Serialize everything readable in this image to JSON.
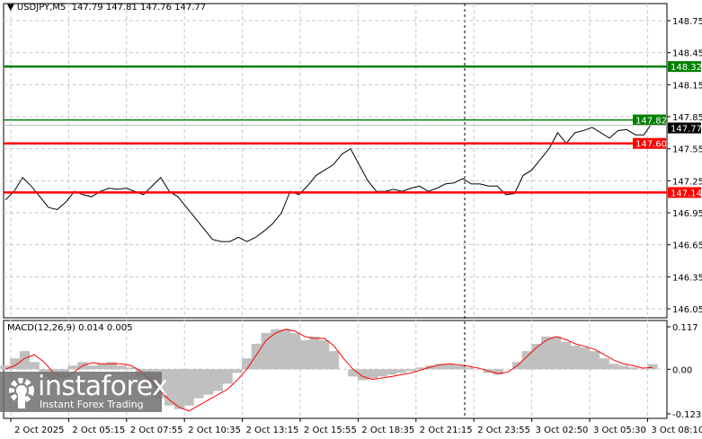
{
  "header": {
    "symbol": "USDJPY,M5",
    "ohlc": "147.79 147.81 147.76 147.77"
  },
  "macd_header": {
    "label": "MACD(12,26,9) 0.014 0.005"
  },
  "logo": {
    "brand": "instaforex",
    "tagline": "Instant Forex Trading"
  },
  "chart_data": [
    {
      "type": "line",
      "name": "price",
      "ylim": [
        146.05,
        148.75
      ],
      "yticks": [
        "148.75",
        "148.45",
        "148.15",
        "147.85",
        "147.55",
        "147.25",
        "146.95",
        "146.65",
        "146.35",
        "146.05"
      ],
      "xticks": [
        "2 Oct 2025",
        "2 Oct 05:15",
        "2 Oct 07:55",
        "2 Oct 10:35",
        "2 Oct 13:15",
        "2 Oct 15:55",
        "2 Oct 18:35",
        "2 Oct 21:15",
        "2 Oct 23:55",
        "3 Oct 02:50",
        "3 Oct 05:30",
        "3 Oct 08:10"
      ],
      "close": [
        147.07,
        147.15,
        147.28,
        147.2,
        147.1,
        147.0,
        146.98,
        147.05,
        147.15,
        147.12,
        147.1,
        147.15,
        147.18,
        147.17,
        147.18,
        147.15,
        147.12,
        147.2,
        147.28,
        147.15,
        147.1,
        147.0,
        146.9,
        146.8,
        146.7,
        146.68,
        146.68,
        146.72,
        146.68,
        146.72,
        146.78,
        146.85,
        146.95,
        147.15,
        147.12,
        147.2,
        147.3,
        147.35,
        147.4,
        147.5,
        147.55,
        147.4,
        147.25,
        147.15,
        147.15,
        147.17,
        147.15,
        147.18,
        147.2,
        147.15,
        147.18,
        147.22,
        147.23,
        147.27,
        147.22,
        147.22,
        147.2,
        147.2,
        147.12,
        147.13,
        147.3,
        147.35,
        147.45,
        147.55,
        147.7,
        147.6,
        147.7,
        147.72,
        147.75,
        147.7,
        147.65,
        147.72,
        147.73,
        147.68,
        147.68,
        147.8
      ],
      "levels": [
        {
          "price": 148.32,
          "label": "148.32",
          "color": "#008000",
          "style": "thick"
        },
        {
          "price": 147.82,
          "label": "147.82",
          "color": "#008000",
          "style": "thin"
        },
        {
          "price": 147.77,
          "label": "147.77",
          "color": "#000000",
          "style": "current"
        },
        {
          "price": 147.6,
          "label": "147.60",
          "color": "#ff0000",
          "style": "thick"
        },
        {
          "price": 147.14,
          "label": "147.14",
          "color": "#ff0000",
          "style": "thick"
        }
      ],
      "grid": true
    },
    {
      "type": "bar",
      "name": "MACD(12,26,9)",
      "ylim": [
        -0.123,
        0.117
      ],
      "yticks": [
        "0.117",
        "0.00",
        "-0.123"
      ],
      "histogram": [
        0.01,
        0.03,
        0.05,
        0.02,
        -0.02,
        -0.03,
        -0.02,
        0.01,
        0.02,
        0.01,
        0.015,
        0.02,
        0.01,
        0.005,
        -0.02,
        -0.05,
        -0.08,
        -0.1,
        -0.11,
        -0.1,
        -0.08,
        -0.07,
        -0.06,
        -0.04,
        -0.01,
        0.03,
        0.07,
        0.1,
        0.11,
        0.11,
        0.1,
        0.08,
        0.09,
        0.08,
        0.05,
        0.0,
        -0.02,
        -0.03,
        -0.025,
        -0.02,
        -0.015,
        -0.01,
        -0.005,
        0.005,
        0.01,
        0.015,
        0.015,
        0.01,
        0.005,
        0.0,
        -0.01,
        -0.015,
        0.0,
        0.02,
        0.05,
        0.07,
        0.09,
        0.09,
        0.075,
        0.065,
        0.06,
        0.05,
        0.03,
        0.015,
        0.01,
        0.005,
        0.0,
        0.014
      ],
      "signal": [
        0.0,
        0.01,
        0.03,
        0.04,
        0.02,
        -0.01,
        -0.025,
        -0.01,
        0.01,
        0.018,
        0.015,
        0.015,
        0.015,
        0.01,
        -0.005,
        -0.03,
        -0.06,
        -0.085,
        -0.105,
        -0.115,
        -0.1,
        -0.085,
        -0.07,
        -0.055,
        -0.03,
        0.0,
        0.04,
        0.08,
        0.1,
        0.11,
        0.105,
        0.09,
        0.085,
        0.085,
        0.065,
        0.03,
        0.0,
        -0.02,
        -0.028,
        -0.024,
        -0.02,
        -0.015,
        -0.01,
        -0.002,
        0.006,
        0.012,
        0.015,
        0.012,
        0.008,
        0.003,
        -0.005,
        -0.012,
        -0.008,
        0.01,
        0.035,
        0.06,
        0.08,
        0.09,
        0.082,
        0.07,
        0.063,
        0.055,
        0.04,
        0.025,
        0.015,
        0.01,
        0.003,
        0.005
      ],
      "colors": {
        "histogram": "#c0c0c0",
        "signal": "#ff0000"
      }
    }
  ]
}
